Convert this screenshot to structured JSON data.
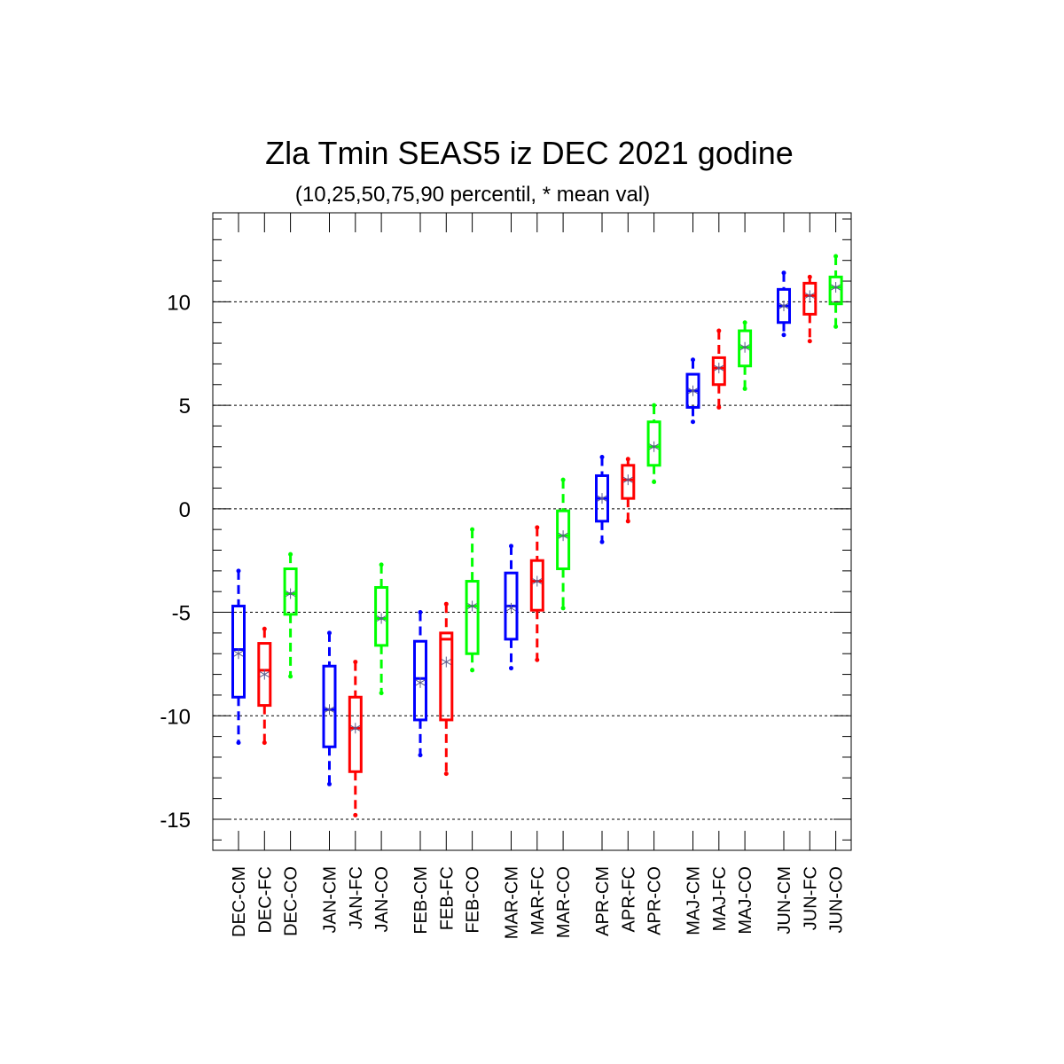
{
  "chart_data": {
    "type": "boxplot",
    "title": "Zla Tmin SEAS5 iz DEC 2021 godine",
    "subtitle": "(10,25,50,75,90 percentil, * mean val)",
    "ylim": [
      -16.5,
      14.3
    ],
    "yticks": [
      10,
      5,
      0,
      -5,
      -10,
      -15
    ],
    "grid": "horizontal dashed",
    "colors": {
      "CM": "#0000ff",
      "FC": "#ff0000",
      "CO": "#00ff00"
    },
    "series": [
      {
        "label": "DEC-CM",
        "type": "CM",
        "group": 0,
        "p10": -11.3,
        "p25": -9.1,
        "p50": -6.8,
        "p75": -4.7,
        "p90": -3.0,
        "mean": -7.0
      },
      {
        "label": "DEC-FC",
        "type": "FC",
        "group": 0,
        "p10": -11.3,
        "p25": -9.5,
        "p50": -7.8,
        "p75": -6.5,
        "p90": -5.8,
        "mean": -8.0
      },
      {
        "label": "DEC-CO",
        "type": "CO",
        "group": 0,
        "p10": -8.1,
        "p25": -5.1,
        "p50": -4.1,
        "p75": -2.9,
        "p90": -2.2,
        "mean": -4.1
      },
      {
        "label": "JAN-CM",
        "type": "CM",
        "group": 1,
        "p10": -13.3,
        "p25": -11.5,
        "p50": -9.7,
        "p75": -7.6,
        "p90": -6.0,
        "mean": -9.7
      },
      {
        "label": "JAN-FC",
        "type": "FC",
        "group": 1,
        "p10": -14.8,
        "p25": -12.7,
        "p50": -10.6,
        "p75": -9.1,
        "p90": -7.4,
        "mean": -10.6
      },
      {
        "label": "JAN-CO",
        "type": "CO",
        "group": 1,
        "p10": -8.9,
        "p25": -6.6,
        "p50": -5.3,
        "p75": -3.8,
        "p90": -2.7,
        "mean": -5.3
      },
      {
        "label": "FEB-CM",
        "type": "CM",
        "group": 2,
        "p10": -11.9,
        "p25": -10.2,
        "p50": -8.2,
        "p75": -6.4,
        "p90": -5.0,
        "mean": -8.4
      },
      {
        "label": "FEB-FC",
        "type": "FC",
        "group": 2,
        "p10": -12.8,
        "p25": -10.2,
        "p50": -6.3,
        "p75": -6.0,
        "p90": -4.6,
        "mean": -7.4
      },
      {
        "label": "FEB-CO",
        "type": "CO",
        "group": 2,
        "p10": -7.8,
        "p25": -7.0,
        "p50": -4.7,
        "p75": -3.5,
        "p90": -1.0,
        "mean": -4.7
      },
      {
        "label": "MAR-CM",
        "type": "CM",
        "group": 3,
        "p10": -7.7,
        "p25": -6.3,
        "p50": -4.7,
        "p75": -3.1,
        "p90": -1.8,
        "mean": -4.8
      },
      {
        "label": "MAR-FC",
        "type": "FC",
        "group": 3,
        "p10": -7.3,
        "p25": -4.9,
        "p50": -3.5,
        "p75": -2.5,
        "p90": -0.9,
        "mean": -3.5
      },
      {
        "label": "MAR-CO",
        "type": "CO",
        "group": 3,
        "p10": -4.8,
        "p25": -2.9,
        "p50": -1.3,
        "p75": -0.1,
        "p90": 1.4,
        "mean": -1.3
      },
      {
        "label": "APR-CM",
        "type": "CM",
        "group": 4,
        "p10": -1.6,
        "p25": -0.6,
        "p50": 0.5,
        "p75": 1.6,
        "p90": 2.5,
        "mean": 0.5
      },
      {
        "label": "APR-FC",
        "type": "FC",
        "group": 4,
        "p10": -0.6,
        "p25": 0.5,
        "p50": 1.4,
        "p75": 2.1,
        "p90": 2.4,
        "mean": 1.4
      },
      {
        "label": "APR-CO",
        "type": "CO",
        "group": 4,
        "p10": 1.3,
        "p25": 2.1,
        "p50": 3.0,
        "p75": 4.2,
        "p90": 5.0,
        "mean": 3.0
      },
      {
        "label": "MAJ-CM",
        "type": "CM",
        "group": 5,
        "p10": 4.2,
        "p25": 4.9,
        "p50": 5.7,
        "p75": 6.5,
        "p90": 7.2,
        "mean": 5.7
      },
      {
        "label": "MAJ-FC",
        "type": "FC",
        "group": 5,
        "p10": 4.9,
        "p25": 6.0,
        "p50": 6.8,
        "p75": 7.3,
        "p90": 8.6,
        "mean": 6.8
      },
      {
        "label": "MAJ-CO",
        "type": "CO",
        "group": 5,
        "p10": 5.8,
        "p25": 6.9,
        "p50": 7.8,
        "p75": 8.6,
        "p90": 9.0,
        "mean": 7.8
      },
      {
        "label": "JUN-CM",
        "type": "CM",
        "group": 6,
        "p10": 8.4,
        "p25": 9.0,
        "p50": 9.8,
        "p75": 10.6,
        "p90": 11.4,
        "mean": 9.8
      },
      {
        "label": "JUN-FC",
        "type": "FC",
        "group": 6,
        "p10": 8.1,
        "p25": 9.4,
        "p50": 10.3,
        "p75": 10.9,
        "p90": 11.2,
        "mean": 10.3
      },
      {
        "label": "JUN-CO",
        "type": "CO",
        "group": 6,
        "p10": 8.8,
        "p25": 9.9,
        "p50": 10.7,
        "p75": 11.2,
        "p90": 12.2,
        "mean": 10.7
      }
    ]
  }
}
